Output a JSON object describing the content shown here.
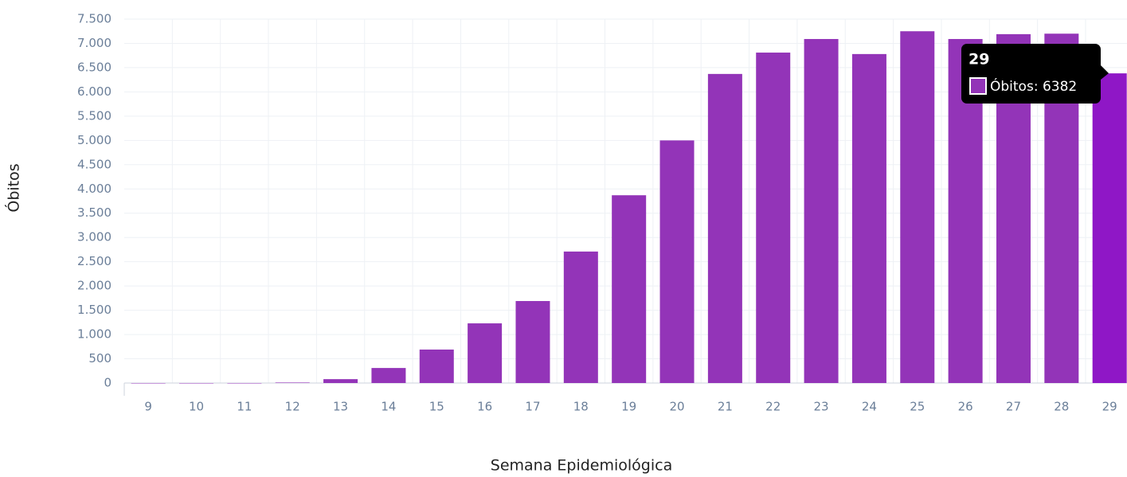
{
  "chart_data": {
    "type": "bar",
    "x_label": "Semana Epidemiológica",
    "y_label": "Óbitos",
    "categories": [
      "9",
      "10",
      "11",
      "12",
      "13",
      "14",
      "15",
      "16",
      "17",
      "18",
      "19",
      "20",
      "21",
      "22",
      "23",
      "24",
      "25",
      "26",
      "27",
      "28",
      "29"
    ],
    "series": [
      {
        "name": "Óbitos",
        "color": "#9334b8",
        "values": [
          0,
          0,
          0,
          10,
          80,
          310,
          690,
          1230,
          1690,
          2710,
          3870,
          5000,
          6370,
          6810,
          7090,
          6780,
          7250,
          7090,
          7190,
          7200,
          6382
        ]
      }
    ],
    "hover_color": "#8f17c6",
    "ylim": [
      0,
      7500
    ],
    "yticks": [
      0,
      500,
      {
        "value": 1000,
        "label": "1.000"
      },
      {
        "value": 1500,
        "label": "1.500"
      },
      {
        "value": 2000,
        "label": "2.000"
      },
      {
        "value": 2500,
        "label": "2.500"
      },
      {
        "value": 3000,
        "label": "3.000"
      },
      {
        "value": 3500,
        "label": "3.500"
      },
      {
        "value": 4000,
        "label": "4.000"
      },
      {
        "value": 4500,
        "label": "4.500"
      },
      {
        "value": 5000,
        "label": "5.000"
      },
      {
        "value": 5500,
        "label": "5.500"
      },
      {
        "value": 6000,
        "label": "6.000"
      },
      {
        "value": 6500,
        "label": "6.500"
      },
      {
        "value": 7000,
        "label": "7.000"
      },
      {
        "value": 7500,
        "label": "7.500"
      }
    ],
    "grid": true,
    "tooltip": {
      "title": "29",
      "text": "Óbitos: 6382"
    }
  }
}
